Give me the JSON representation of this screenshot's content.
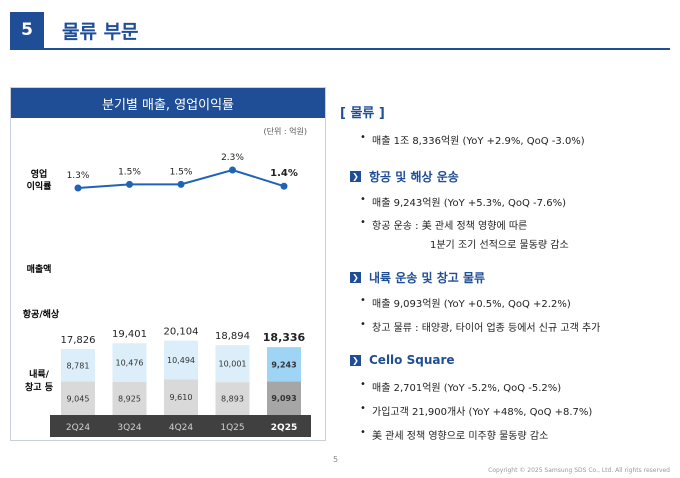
{
  "header": {
    "number": "5",
    "title": "물류 부문"
  },
  "chart_panel": {
    "title": "분기별 매출, 영업이익률",
    "unit": "(단위 : 억원)",
    "row_labels": {
      "margin_line1": "영업",
      "margin_line2": "이익률",
      "revenue": "매출액",
      "air_sea": "항공/해상",
      "inland_line1": "내륙/",
      "inland_line2": "창고 등"
    }
  },
  "chart_data": {
    "type": "bar",
    "stacked": true,
    "categories": [
      "2Q24",
      "3Q24",
      "4Q24",
      "1Q25",
      "2Q25"
    ],
    "totals": [
      "17,826",
      "19,401",
      "20,104",
      "18,894",
      "18,336"
    ],
    "series": [
      {
        "name": "내륙/창고 등",
        "values": [
          9045,
          8925,
          9610,
          8893,
          9093
        ],
        "labels": [
          "9,045",
          "8,925",
          "9,610",
          "8,893",
          "9,093"
        ],
        "color": "#d9d9d9",
        "highlight_color": "#a6a6a6"
      },
      {
        "name": "항공/해상",
        "values": [
          8781,
          10476,
          10494,
          10001,
          9243
        ],
        "labels": [
          "8,781",
          "10,476",
          "10,494",
          "10,001",
          "9,243"
        ],
        "color": "#ddeefb",
        "highlight_color": "#9fd4f5"
      }
    ],
    "margin_line": {
      "values": [
        1.3,
        1.5,
        1.5,
        2.3,
        1.4
      ],
      "labels": [
        "1.3%",
        "1.5%",
        "1.5%",
        "2.3%",
        "1.4%"
      ],
      "color": "#1f62b8"
    },
    "highlight_index": 4
  },
  "right": {
    "main_title": "[ 물류 ]",
    "main_bullet": "매출 1조 8,336억원 (YoY +2.9%, QoQ -3.0%)",
    "sections": [
      {
        "title": "항공 및 해상 운송",
        "bullets": [
          "매출 9,243억원 (YoY +5.3%, QoQ -7.6%)",
          "항공 운송 : 美 관세 정책 영향에 따른"
        ],
        "continuation": "1분기 조기 선적으로 물동량 감소"
      },
      {
        "title": "내륙 운송 및 창고 물류",
        "bullets": [
          "매출 9,093억원 (YoY +0.5%, QoQ +2.2%)",
          "창고 물류 : 태양광, 타이어 업종 등에서 신규 고객 추가"
        ]
      },
      {
        "title": "Cello Square",
        "bullets": [
          "매출 2,701억원 (YoY -5.2%, QoQ -5.2%)",
          "가입고객 21,900개사 (YoY +48%, QoQ +8.7%)",
          "美 관세 정책 영향으로 미주향 물동량 감소"
        ]
      }
    ],
    "marker_glyph": "❯"
  },
  "footer": {
    "page_number": "5",
    "copyright": "Copyright © 2025 Samsung SDS Co., Ltd. All rights reserved"
  }
}
